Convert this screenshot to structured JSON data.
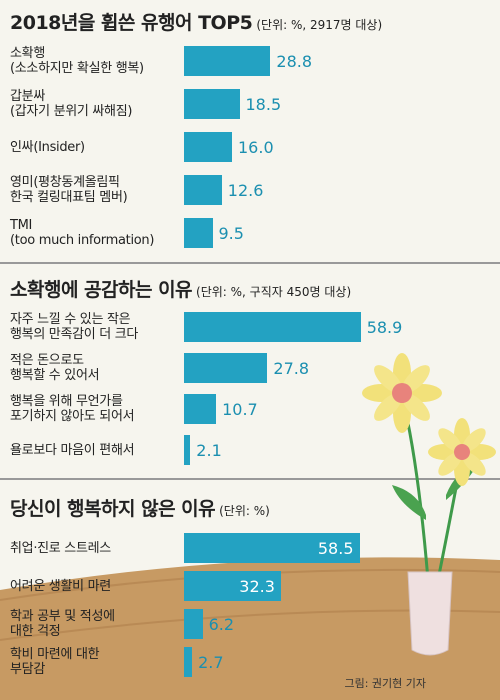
{
  "chart_data": [
    {
      "type": "bar",
      "orientation": "horizontal",
      "title": "2018년을 휩쓴 유행어 TOP5",
      "unit_note": "(단위: %, 2917명 대상)",
      "categories": [
        [
          "소확행",
          "(소소하지만 확실한 행복)"
        ],
        [
          "갑분싸",
          "(갑자기 분위기 싸해짐)"
        ],
        [
          "인싸(Insider)"
        ],
        [
          "영미(평창동계올림픽",
          "한국 컬링대표팀 멤버)"
        ],
        [
          "TMI",
          "(too much information)"
        ]
      ],
      "values": [
        28.8,
        18.5,
        16.0,
        12.6,
        9.5
      ],
      "value_labels": [
        "28.8",
        "18.5",
        "16.0",
        "12.6",
        "9.5"
      ]
    },
    {
      "type": "bar",
      "orientation": "horizontal",
      "title": "소확행에 공감하는 이유",
      "unit_note": "(단위: %, 구직자 450명 대상)",
      "categories": [
        [
          "자주 느낄 수 있는 작은",
          "행복의  만족감이 더 크다"
        ],
        [
          "적은 돈으로도",
          "행복할 수 있어서"
        ],
        [
          "행복을 위해 무언가를",
          "포기하지 않아도 되어서"
        ],
        [
          "욜로보다 마음이 편해서"
        ]
      ],
      "values": [
        58.9,
        27.8,
        10.7,
        2.1
      ],
      "value_labels": [
        "58.9",
        "27.8",
        "10.7",
        "2.1"
      ]
    },
    {
      "type": "bar",
      "orientation": "horizontal",
      "title": "당신이 행복하지 않은 이유",
      "unit_note": "(단위: %)",
      "categories": [
        [
          "취업·진로 스트레스"
        ],
        [
          "어려운 생활비 마련"
        ],
        [
          "학과 공부 및 적성에",
          "대한 걱정"
        ],
        [
          "학비 마련에 대한",
          "부담감"
        ]
      ],
      "values": [
        58.5,
        32.3,
        6.2,
        2.7
      ],
      "value_labels": [
        "58.5",
        "32.3",
        "6.2",
        "2.7"
      ]
    }
  ],
  "credit": "그림: 권기현 기자"
}
